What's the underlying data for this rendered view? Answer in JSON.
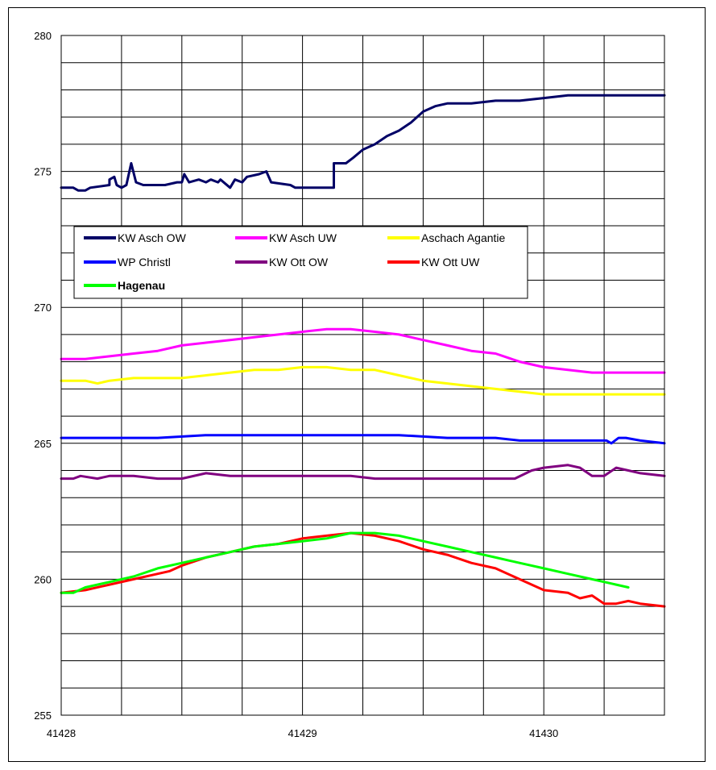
{
  "chart_data": {
    "type": "line",
    "title": "",
    "xlabel": "",
    "ylabel": "",
    "xlim": [
      41428,
      41430.5
    ],
    "ylim": [
      255,
      280
    ],
    "xticks": [
      41428,
      41429,
      41430
    ],
    "yticks": [
      255,
      260,
      265,
      270,
      275,
      280
    ],
    "grid": true,
    "legend_position": "upper-left",
    "series": [
      {
        "name": "KW Asch OW",
        "color": "#000066",
        "points": [
          [
            41428,
            274.4
          ],
          [
            41428.05,
            274.4
          ],
          [
            41428.07,
            274.3
          ],
          [
            41428.1,
            274.3
          ],
          [
            41428.12,
            274.4
          ],
          [
            41428.2,
            274.5
          ],
          [
            41428.2,
            274.7
          ],
          [
            41428.22,
            274.8
          ],
          [
            41428.23,
            274.5
          ],
          [
            41428.25,
            274.4
          ],
          [
            41428.27,
            274.5
          ],
          [
            41428.29,
            275.3
          ],
          [
            41428.31,
            274.6
          ],
          [
            41428.34,
            274.5
          ],
          [
            41428.43,
            274.5
          ],
          [
            41428.48,
            274.6
          ],
          [
            41428.5,
            274.6
          ],
          [
            41428.51,
            274.9
          ],
          [
            41428.53,
            274.6
          ],
          [
            41428.57,
            274.7
          ],
          [
            41428.6,
            274.6
          ],
          [
            41428.62,
            274.7
          ],
          [
            41428.65,
            274.6
          ],
          [
            41428.66,
            274.7
          ],
          [
            41428.7,
            274.4
          ],
          [
            41428.72,
            274.7
          ],
          [
            41428.75,
            274.6
          ],
          [
            41428.77,
            274.8
          ],
          [
            41428.82,
            274.9
          ],
          [
            41428.85,
            275.0
          ],
          [
            41428.87,
            274.6
          ],
          [
            41428.95,
            274.5
          ],
          [
            41428.97,
            274.4
          ],
          [
            41429.1,
            274.4
          ],
          [
            41429.13,
            274.4
          ],
          [
            41429.13,
            275.3
          ],
          [
            41429.18,
            275.3
          ],
          [
            41429.21,
            275.5
          ],
          [
            41429.25,
            275.8
          ],
          [
            41429.3,
            276.0
          ],
          [
            41429.35,
            276.3
          ],
          [
            41429.4,
            276.5
          ],
          [
            41429.45,
            276.8
          ],
          [
            41429.5,
            277.2
          ],
          [
            41429.55,
            277.4
          ],
          [
            41429.6,
            277.5
          ],
          [
            41429.7,
            277.5
          ],
          [
            41429.8,
            277.6
          ],
          [
            41429.9,
            277.6
          ],
          [
            41430.0,
            277.7
          ],
          [
            41430.1,
            277.8
          ],
          [
            41430.2,
            277.8
          ],
          [
            41430.3,
            277.8
          ],
          [
            41430.4,
            277.8
          ],
          [
            41430.5,
            277.8
          ]
        ]
      },
      {
        "name": "KW Asch UW",
        "color": "#ff00ff",
        "points": [
          [
            41428,
            268.1
          ],
          [
            41428.1,
            268.1
          ],
          [
            41428.2,
            268.2
          ],
          [
            41428.3,
            268.3
          ],
          [
            41428.4,
            268.4
          ],
          [
            41428.5,
            268.6
          ],
          [
            41428.6,
            268.7
          ],
          [
            41428.7,
            268.8
          ],
          [
            41428.8,
            268.9
          ],
          [
            41428.9,
            269.0
          ],
          [
            41429.0,
            269.1
          ],
          [
            41429.1,
            269.2
          ],
          [
            41429.2,
            269.2
          ],
          [
            41429.3,
            269.1
          ],
          [
            41429.4,
            269.0
          ],
          [
            41429.5,
            268.8
          ],
          [
            41429.6,
            268.6
          ],
          [
            41429.7,
            268.4
          ],
          [
            41429.8,
            268.3
          ],
          [
            41429.9,
            268.0
          ],
          [
            41430.0,
            267.8
          ],
          [
            41430.1,
            267.7
          ],
          [
            41430.2,
            267.6
          ],
          [
            41430.3,
            267.6
          ],
          [
            41430.4,
            267.6
          ],
          [
            41430.5,
            267.6
          ]
        ]
      },
      {
        "name": "Aschach Agantie",
        "color": "#ffff00",
        "points": [
          [
            41428,
            267.3
          ],
          [
            41428.1,
            267.3
          ],
          [
            41428.15,
            267.2
          ],
          [
            41428.2,
            267.3
          ],
          [
            41428.3,
            267.4
          ],
          [
            41428.4,
            267.4
          ],
          [
            41428.5,
            267.4
          ],
          [
            41428.6,
            267.5
          ],
          [
            41428.7,
            267.6
          ],
          [
            41428.8,
            267.7
          ],
          [
            41428.9,
            267.7
          ],
          [
            41429.0,
            267.8
          ],
          [
            41429.1,
            267.8
          ],
          [
            41429.2,
            267.7
          ],
          [
            41429.3,
            267.7
          ],
          [
            41429.4,
            267.5
          ],
          [
            41429.5,
            267.3
          ],
          [
            41429.6,
            267.2
          ],
          [
            41429.7,
            267.1
          ],
          [
            41429.8,
            267.0
          ],
          [
            41429.9,
            266.9
          ],
          [
            41430.0,
            266.8
          ],
          [
            41430.1,
            266.8
          ],
          [
            41430.2,
            266.8
          ],
          [
            41430.3,
            266.8
          ],
          [
            41430.4,
            266.8
          ],
          [
            41430.5,
            266.8
          ]
        ]
      },
      {
        "name": "WP Christl",
        "color": "#0000ff",
        "points": [
          [
            41428,
            265.2
          ],
          [
            41428.2,
            265.2
          ],
          [
            41428.4,
            265.2
          ],
          [
            41428.6,
            265.3
          ],
          [
            41428.8,
            265.3
          ],
          [
            41429.0,
            265.3
          ],
          [
            41429.2,
            265.3
          ],
          [
            41429.4,
            265.3
          ],
          [
            41429.6,
            265.2
          ],
          [
            41429.8,
            265.2
          ],
          [
            41429.9,
            265.1
          ],
          [
            41430.0,
            265.1
          ],
          [
            41430.1,
            265.1
          ],
          [
            41430.2,
            265.1
          ],
          [
            41430.26,
            265.1
          ],
          [
            41430.28,
            265.0
          ],
          [
            41430.31,
            265.2
          ],
          [
            41430.34,
            265.2
          ],
          [
            41430.4,
            265.1
          ],
          [
            41430.5,
            265.0
          ]
        ]
      },
      {
        "name": "KW Ott OW",
        "color": "#800080",
        "points": [
          [
            41428,
            263.7
          ],
          [
            41428.05,
            263.7
          ],
          [
            41428.08,
            263.8
          ],
          [
            41428.15,
            263.7
          ],
          [
            41428.2,
            263.8
          ],
          [
            41428.3,
            263.8
          ],
          [
            41428.4,
            263.7
          ],
          [
            41428.5,
            263.7
          ],
          [
            41428.6,
            263.9
          ],
          [
            41428.7,
            263.8
          ],
          [
            41428.8,
            263.8
          ],
          [
            41428.9,
            263.8
          ],
          [
            41429.0,
            263.8
          ],
          [
            41429.1,
            263.8
          ],
          [
            41429.2,
            263.8
          ],
          [
            41429.3,
            263.7
          ],
          [
            41429.4,
            263.7
          ],
          [
            41429.5,
            263.7
          ],
          [
            41429.6,
            263.7
          ],
          [
            41429.7,
            263.7
          ],
          [
            41429.8,
            263.7
          ],
          [
            41429.88,
            263.7
          ],
          [
            41429.95,
            264.0
          ],
          [
            41430.0,
            264.1
          ],
          [
            41430.1,
            264.2
          ],
          [
            41430.15,
            264.1
          ],
          [
            41430.2,
            263.8
          ],
          [
            41430.25,
            263.8
          ],
          [
            41430.3,
            264.1
          ],
          [
            41430.35,
            264.0
          ],
          [
            41430.4,
            263.9
          ],
          [
            41430.5,
            263.8
          ]
        ]
      },
      {
        "name": "KW Ott UW",
        "color": "#ff0000",
        "points": [
          [
            41428,
            259.5
          ],
          [
            41428.1,
            259.6
          ],
          [
            41428.2,
            259.8
          ],
          [
            41428.3,
            260.0
          ],
          [
            41428.4,
            260.2
          ],
          [
            41428.45,
            260.3
          ],
          [
            41428.5,
            260.5
          ],
          [
            41428.6,
            260.8
          ],
          [
            41428.7,
            261.0
          ],
          [
            41428.8,
            261.2
          ],
          [
            41428.9,
            261.3
          ],
          [
            41429.0,
            261.5
          ],
          [
            41429.1,
            261.6
          ],
          [
            41429.2,
            261.7
          ],
          [
            41429.3,
            261.6
          ],
          [
            41429.4,
            261.4
          ],
          [
            41429.5,
            261.1
          ],
          [
            41429.6,
            260.9
          ],
          [
            41429.7,
            260.6
          ],
          [
            41429.8,
            260.4
          ],
          [
            41429.9,
            260.0
          ],
          [
            41429.95,
            259.8
          ],
          [
            41430.0,
            259.6
          ],
          [
            41430.1,
            259.5
          ],
          [
            41430.15,
            259.3
          ],
          [
            41430.2,
            259.4
          ],
          [
            41430.25,
            259.1
          ],
          [
            41430.3,
            259.1
          ],
          [
            41430.35,
            259.2
          ],
          [
            41430.4,
            259.1
          ],
          [
            41430.5,
            259.0
          ]
        ]
      },
      {
        "name": "Hagenau",
        "color": "#00ff00",
        "points": [
          [
            41428,
            259.5
          ],
          [
            41428.05,
            259.5
          ],
          [
            41428.1,
            259.7
          ],
          [
            41428.2,
            259.9
          ],
          [
            41428.3,
            260.1
          ],
          [
            41428.4,
            260.4
          ],
          [
            41428.5,
            260.6
          ],
          [
            41428.6,
            260.8
          ],
          [
            41428.7,
            261.0
          ],
          [
            41428.8,
            261.2
          ],
          [
            41428.9,
            261.3
          ],
          [
            41429.0,
            261.4
          ],
          [
            41429.1,
            261.5
          ],
          [
            41429.2,
            261.7
          ],
          [
            41429.3,
            261.7
          ],
          [
            41429.4,
            261.6
          ],
          [
            41429.5,
            261.4
          ],
          [
            41429.6,
            261.2
          ],
          [
            41429.7,
            261.0
          ],
          [
            41429.8,
            260.8
          ],
          [
            41429.9,
            260.6
          ],
          [
            41430.0,
            260.4
          ],
          [
            41430.1,
            260.2
          ],
          [
            41430.2,
            260.0
          ],
          [
            41430.3,
            259.8
          ],
          [
            41430.35,
            259.7
          ]
        ]
      }
    ]
  }
}
